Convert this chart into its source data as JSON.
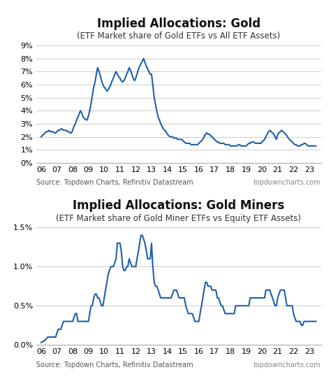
{
  "title1": "Implied Allocations: Gold",
  "subtitle1": "(ETF Market share of Gold ETFs vs All ETF Assets)",
  "title2": "Implied Allocations: Gold Miners",
  "subtitle2": "(ETF Market share of Gold Miner ETFs vs Equity ETF Assets)",
  "source_text": "Source: Topdown Charts, Refinitiv Datastream",
  "watermark": "topdowncharts.com",
  "line_color": "#1f5fad",
  "bg_color": "#ffffff",
  "grid_color": "#cccccc",
  "title_fontsize": 12,
  "subtitle_fontsize": 8.5,
  "tick_fontsize": 8,
  "source_fontsize": 7,
  "x_ticks": [
    2006,
    2007,
    2008,
    2009,
    2010,
    2011,
    2012,
    2013,
    2014,
    2015,
    2016,
    2017,
    2018,
    2019,
    2020,
    2021,
    2022,
    2023
  ],
  "x_tick_labels": [
    "06",
    "07",
    "08",
    "09",
    "10",
    "11",
    "12",
    "13",
    "14",
    "15",
    "16",
    "17",
    "18",
    "19",
    "20",
    "21",
    "22",
    "23"
  ],
  "ylim1": [
    0.0,
    0.09
  ],
  "yticks1": [
    0.0,
    0.01,
    0.02,
    0.03,
    0.04,
    0.05,
    0.06,
    0.07,
    0.08,
    0.09
  ],
  "ytick_labels1": [
    "0%",
    "1%",
    "2%",
    "3%",
    "4%",
    "5%",
    "6%",
    "7%",
    "8%",
    "9%"
  ],
  "ylim2": [
    0.0,
    0.015
  ],
  "yticks2": [
    0.0,
    0.005,
    0.01,
    0.015
  ],
  "ytick_labels2": [
    "0.0%",
    "0.5%",
    "1.0%",
    "1.5%"
  ],
  "gold_x": [
    2006.0,
    2006.08,
    2006.17,
    2006.25,
    2006.33,
    2006.42,
    2006.5,
    2006.58,
    2006.67,
    2006.75,
    2006.83,
    2006.92,
    2007.0,
    2007.08,
    2007.17,
    2007.25,
    2007.33,
    2007.42,
    2007.5,
    2007.58,
    2007.67,
    2007.75,
    2007.83,
    2007.92,
    2008.0,
    2008.08,
    2008.17,
    2008.25,
    2008.33,
    2008.42,
    2008.5,
    2008.58,
    2008.67,
    2008.75,
    2008.83,
    2008.92,
    2009.0,
    2009.08,
    2009.17,
    2009.25,
    2009.33,
    2009.42,
    2009.5,
    2009.58,
    2009.67,
    2009.75,
    2009.83,
    2009.92,
    2010.0,
    2010.08,
    2010.17,
    2010.25,
    2010.33,
    2010.42,
    2010.5,
    2010.58,
    2010.67,
    2010.75,
    2010.83,
    2010.92,
    2011.0,
    2011.08,
    2011.17,
    2011.25,
    2011.33,
    2011.42,
    2011.5,
    2011.58,
    2011.67,
    2011.75,
    2011.83,
    2011.92,
    2012.0,
    2012.08,
    2012.17,
    2012.25,
    2012.33,
    2012.42,
    2012.5,
    2012.58,
    2012.67,
    2012.75,
    2012.83,
    2012.92,
    2013.0,
    2013.08,
    2013.17,
    2013.25,
    2013.33,
    2013.42,
    2013.5,
    2013.58,
    2013.67,
    2013.75,
    2013.83,
    2013.92,
    2014.0,
    2014.08,
    2014.17,
    2014.25,
    2014.33,
    2014.42,
    2014.5,
    2014.58,
    2014.67,
    2014.75,
    2014.83,
    2014.92,
    2015.0,
    2015.08,
    2015.17,
    2015.25,
    2015.33,
    2015.42,
    2015.5,
    2015.58,
    2015.67,
    2015.75,
    2015.83,
    2015.92,
    2016.0,
    2016.08,
    2016.17,
    2016.25,
    2016.33,
    2016.42,
    2016.5,
    2016.58,
    2016.67,
    2016.75,
    2016.83,
    2016.92,
    2017.0,
    2017.08,
    2017.17,
    2017.25,
    2017.33,
    2017.42,
    2017.5,
    2017.58,
    2017.67,
    2017.75,
    2017.83,
    2017.92,
    2018.0,
    2018.08,
    2018.17,
    2018.25,
    2018.33,
    2018.42,
    2018.5,
    2018.58,
    2018.67,
    2018.75,
    2018.83,
    2018.92,
    2019.0,
    2019.08,
    2019.17,
    2019.25,
    2019.33,
    2019.42,
    2019.5,
    2019.58,
    2019.67,
    2019.75,
    2019.83,
    2019.92,
    2020.0,
    2020.08,
    2020.17,
    2020.25,
    2020.33,
    2020.42,
    2020.5,
    2020.58,
    2020.67,
    2020.75,
    2020.83,
    2020.92,
    2021.0,
    2021.08,
    2021.17,
    2021.25,
    2021.33,
    2021.42,
    2021.5,
    2021.58,
    2021.67,
    2021.75,
    2021.83,
    2021.92,
    2022.0,
    2022.08,
    2022.17,
    2022.25,
    2022.33,
    2022.42,
    2022.5,
    2022.58,
    2022.67,
    2022.75,
    2022.83,
    2022.92,
    2023.0,
    2023.08,
    2023.17,
    2023.25,
    2023.33,
    2023.42
  ],
  "gold_y": [
    0.02,
    0.021,
    0.022,
    0.023,
    0.024,
    0.024,
    0.025,
    0.024,
    0.024,
    0.024,
    0.023,
    0.023,
    0.024,
    0.025,
    0.025,
    0.026,
    0.026,
    0.025,
    0.025,
    0.025,
    0.024,
    0.024,
    0.023,
    0.023,
    0.025,
    0.028,
    0.03,
    0.033,
    0.035,
    0.038,
    0.04,
    0.038,
    0.035,
    0.034,
    0.033,
    0.033,
    0.036,
    0.04,
    0.046,
    0.052,
    0.058,
    0.062,
    0.068,
    0.073,
    0.07,
    0.067,
    0.063,
    0.06,
    0.058,
    0.057,
    0.055,
    0.056,
    0.058,
    0.06,
    0.063,
    0.065,
    0.068,
    0.07,
    0.068,
    0.066,
    0.065,
    0.063,
    0.062,
    0.063,
    0.065,
    0.068,
    0.07,
    0.073,
    0.071,
    0.068,
    0.065,
    0.063,
    0.065,
    0.068,
    0.072,
    0.074,
    0.076,
    0.078,
    0.08,
    0.077,
    0.074,
    0.072,
    0.07,
    0.068,
    0.068,
    0.06,
    0.05,
    0.045,
    0.04,
    0.035,
    0.033,
    0.03,
    0.028,
    0.026,
    0.025,
    0.024,
    0.022,
    0.021,
    0.02,
    0.02,
    0.02,
    0.019,
    0.019,
    0.019,
    0.018,
    0.018,
    0.018,
    0.018,
    0.017,
    0.016,
    0.015,
    0.015,
    0.015,
    0.015,
    0.014,
    0.014,
    0.014,
    0.014,
    0.014,
    0.014,
    0.015,
    0.016,
    0.017,
    0.018,
    0.02,
    0.022,
    0.023,
    0.022,
    0.022,
    0.021,
    0.02,
    0.019,
    0.018,
    0.017,
    0.016,
    0.016,
    0.015,
    0.015,
    0.015,
    0.015,
    0.014,
    0.014,
    0.014,
    0.014,
    0.013,
    0.013,
    0.013,
    0.013,
    0.013,
    0.013,
    0.014,
    0.014,
    0.013,
    0.013,
    0.013,
    0.013,
    0.013,
    0.014,
    0.015,
    0.015,
    0.016,
    0.016,
    0.016,
    0.015,
    0.015,
    0.015,
    0.015,
    0.015,
    0.016,
    0.017,
    0.018,
    0.02,
    0.022,
    0.024,
    0.025,
    0.024,
    0.023,
    0.022,
    0.02,
    0.018,
    0.022,
    0.023,
    0.024,
    0.025,
    0.024,
    0.023,
    0.022,
    0.021,
    0.019,
    0.018,
    0.017,
    0.016,
    0.015,
    0.014,
    0.014,
    0.013,
    0.013,
    0.013,
    0.014,
    0.014,
    0.015,
    0.015,
    0.014,
    0.013,
    0.013,
    0.013,
    0.013,
    0.013,
    0.013,
    0.013
  ],
  "miners_x": [
    2006.0,
    2006.08,
    2006.17,
    2006.25,
    2006.33,
    2006.42,
    2006.5,
    2006.58,
    2006.67,
    2006.75,
    2006.83,
    2006.92,
    2007.0,
    2007.08,
    2007.17,
    2007.25,
    2007.33,
    2007.42,
    2007.5,
    2007.58,
    2007.67,
    2007.75,
    2007.83,
    2007.92,
    2008.0,
    2008.08,
    2008.17,
    2008.25,
    2008.33,
    2008.42,
    2008.5,
    2008.58,
    2008.67,
    2008.75,
    2008.83,
    2008.92,
    2009.0,
    2009.08,
    2009.17,
    2009.25,
    2009.33,
    2009.42,
    2009.5,
    2009.58,
    2009.67,
    2009.75,
    2009.83,
    2009.92,
    2010.0,
    2010.08,
    2010.17,
    2010.25,
    2010.33,
    2010.42,
    2010.5,
    2010.58,
    2010.67,
    2010.75,
    2010.83,
    2010.92,
    2011.0,
    2011.08,
    2011.17,
    2011.25,
    2011.33,
    2011.42,
    2011.5,
    2011.58,
    2011.67,
    2011.75,
    2011.83,
    2011.92,
    2012.0,
    2012.08,
    2012.17,
    2012.25,
    2012.33,
    2012.42,
    2012.5,
    2012.58,
    2012.67,
    2012.75,
    2012.83,
    2012.92,
    2013.0,
    2013.08,
    2013.17,
    2013.25,
    2013.33,
    2013.42,
    2013.5,
    2013.58,
    2013.67,
    2013.75,
    2013.83,
    2013.92,
    2014.0,
    2014.08,
    2014.17,
    2014.25,
    2014.33,
    2014.42,
    2014.5,
    2014.58,
    2014.67,
    2014.75,
    2014.83,
    2014.92,
    2015.0,
    2015.08,
    2015.17,
    2015.25,
    2015.33,
    2015.42,
    2015.5,
    2015.58,
    2015.67,
    2015.75,
    2015.83,
    2015.92,
    2016.0,
    2016.08,
    2016.17,
    2016.25,
    2016.33,
    2016.42,
    2016.5,
    2016.58,
    2016.67,
    2016.75,
    2016.83,
    2016.92,
    2017.0,
    2017.08,
    2017.17,
    2017.25,
    2017.33,
    2017.42,
    2017.5,
    2017.58,
    2017.67,
    2017.75,
    2017.83,
    2017.92,
    2018.0,
    2018.08,
    2018.17,
    2018.25,
    2018.33,
    2018.42,
    2018.5,
    2018.58,
    2018.67,
    2018.75,
    2018.83,
    2018.92,
    2019.0,
    2019.08,
    2019.17,
    2019.25,
    2019.33,
    2019.42,
    2019.5,
    2019.58,
    2019.67,
    2019.75,
    2019.83,
    2019.92,
    2020.0,
    2020.08,
    2020.17,
    2020.25,
    2020.33,
    2020.42,
    2020.5,
    2020.58,
    2020.67,
    2020.75,
    2020.83,
    2020.92,
    2021.0,
    2021.08,
    2021.17,
    2021.25,
    2021.33,
    2021.42,
    2021.5,
    2021.58,
    2021.67,
    2021.75,
    2021.83,
    2021.92,
    2022.0,
    2022.08,
    2022.17,
    2022.25,
    2022.33,
    2022.42,
    2022.5,
    2022.58,
    2022.67,
    2022.75,
    2022.83,
    2022.92,
    2023.0,
    2023.08,
    2023.17,
    2023.25,
    2023.33,
    2023.42
  ],
  "miners_y": [
    0.0003,
    0.0004,
    0.0005,
    0.0006,
    0.0008,
    0.001,
    0.001,
    0.001,
    0.001,
    0.001,
    0.001,
    0.001,
    0.0015,
    0.002,
    0.002,
    0.002,
    0.0025,
    0.003,
    0.003,
    0.003,
    0.003,
    0.003,
    0.003,
    0.003,
    0.003,
    0.0035,
    0.004,
    0.004,
    0.003,
    0.003,
    0.003,
    0.003,
    0.003,
    0.003,
    0.003,
    0.003,
    0.003,
    0.004,
    0.005,
    0.005,
    0.006,
    0.0065,
    0.0065,
    0.006,
    0.006,
    0.0055,
    0.005,
    0.005,
    0.006,
    0.007,
    0.008,
    0.009,
    0.0095,
    0.01,
    0.01,
    0.01,
    0.0105,
    0.011,
    0.013,
    0.013,
    0.013,
    0.012,
    0.01,
    0.0095,
    0.0095,
    0.01,
    0.01,
    0.011,
    0.0105,
    0.01,
    0.01,
    0.01,
    0.01,
    0.011,
    0.012,
    0.013,
    0.014,
    0.014,
    0.0135,
    0.013,
    0.012,
    0.011,
    0.011,
    0.011,
    0.013,
    0.01,
    0.008,
    0.0075,
    0.0075,
    0.007,
    0.0065,
    0.006,
    0.006,
    0.006,
    0.006,
    0.006,
    0.006,
    0.006,
    0.006,
    0.006,
    0.0065,
    0.007,
    0.007,
    0.007,
    0.0065,
    0.006,
    0.006,
    0.006,
    0.006,
    0.006,
    0.005,
    0.0045,
    0.004,
    0.004,
    0.004,
    0.004,
    0.0035,
    0.003,
    0.003,
    0.003,
    0.003,
    0.004,
    0.005,
    0.006,
    0.007,
    0.008,
    0.008,
    0.0075,
    0.0075,
    0.0075,
    0.007,
    0.007,
    0.007,
    0.007,
    0.006,
    0.006,
    0.0055,
    0.005,
    0.005,
    0.0045,
    0.004,
    0.004,
    0.004,
    0.004,
    0.004,
    0.004,
    0.004,
    0.004,
    0.005,
    0.005,
    0.005,
    0.005,
    0.005,
    0.005,
    0.005,
    0.005,
    0.005,
    0.005,
    0.005,
    0.006,
    0.006,
    0.006,
    0.006,
    0.006,
    0.006,
    0.006,
    0.006,
    0.006,
    0.006,
    0.006,
    0.006,
    0.007,
    0.007,
    0.007,
    0.007,
    0.0065,
    0.006,
    0.0055,
    0.005,
    0.005,
    0.006,
    0.0065,
    0.007,
    0.007,
    0.007,
    0.007,
    0.006,
    0.005,
    0.005,
    0.005,
    0.005,
    0.005,
    0.004,
    0.0035,
    0.003,
    0.003,
    0.003,
    0.003,
    0.0025,
    0.0025,
    0.003,
    0.003,
    0.003,
    0.003,
    0.003,
    0.003,
    0.003,
    0.003,
    0.003,
    0.003
  ]
}
